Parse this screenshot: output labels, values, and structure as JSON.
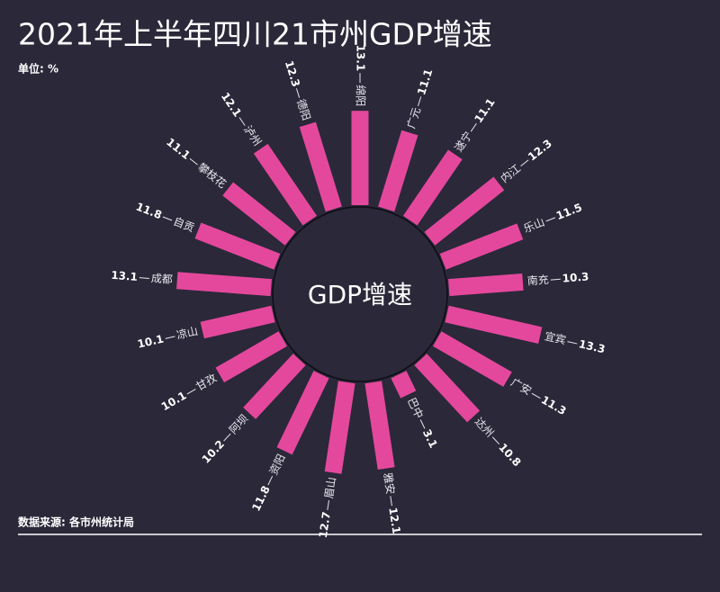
{
  "chart_data": {
    "type": "radial_bar",
    "title": "2021年上半年四川21市州GDP增速",
    "unit_label": "单位: %",
    "center_label": "GDP增速",
    "source": "数据来源: 各市州统计局",
    "categories": [
      "绵阳",
      "广元",
      "遂宁",
      "内江",
      "乐山",
      "南充",
      "宜宾",
      "广安",
      "达州",
      "巴中",
      "雅安",
      "眉山",
      "资阳",
      "阿坝",
      "甘孜",
      "凉山",
      "成都",
      "自贡",
      "攀枝花",
      "泸州",
      "德阳"
    ],
    "values": [
      13.1,
      11.1,
      11.1,
      12.3,
      11.5,
      10.3,
      13.3,
      11.3,
      10.8,
      3.1,
      12.1,
      12.7,
      11.8,
      10.2,
      10.1,
      10.1,
      13.1,
      11.8,
      11.1,
      12.1,
      12.3
    ],
    "color": "#e4489c"
  }
}
